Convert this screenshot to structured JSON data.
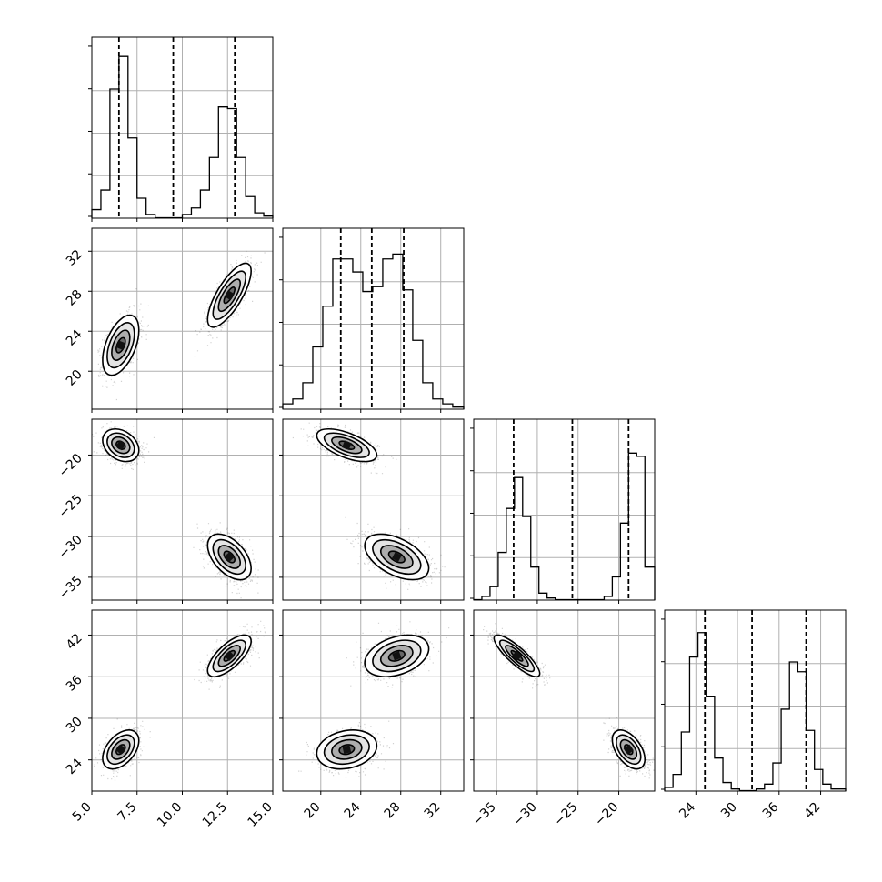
{
  "chart_data": {
    "type": "corner",
    "params": [
      {
        "ticks": [
          5.0,
          7.5,
          10.0,
          12.5,
          15.0
        ],
        "labels": [
          "5.0",
          "7.5",
          "10.0",
          "12.5",
          "15.0"
        ],
        "range": [
          5.0,
          15.0
        ],
        "quantiles": [
          6.5,
          9.5,
          12.9
        ]
      },
      {
        "ticks": [
          20,
          24,
          28,
          32
        ],
        "labels": [
          "20",
          "24",
          "28",
          "32"
        ],
        "range": [
          16.2,
          34.3
        ],
        "quantiles": [
          22.0,
          25.1,
          28.3
        ]
      },
      {
        "ticks": [
          -35,
          -30,
          -25,
          -20
        ],
        "labels": [
          "−35",
          "−30",
          "−25",
          "−20"
        ],
        "range": [
          -37.8,
          -15.6
        ],
        "quantiles": [
          -32.9,
          -25.7,
          -18.8
        ]
      },
      {
        "ticks": [
          24,
          30,
          36,
          42
        ],
        "labels": [
          "24",
          "30",
          "36",
          "42"
        ],
        "range": [
          19.5,
          45.6
        ],
        "quantiles": [
          25.3,
          32.1,
          39.9
        ]
      }
    ],
    "histograms": [
      {
        "bins": [
          5.0,
          5.5,
          6.0,
          6.5,
          7.0,
          7.5,
          8.0,
          8.5,
          9.0,
          9.5,
          10.0,
          10.5,
          11.0,
          11.5,
          12.0,
          12.5,
          13.0,
          13.5,
          14.0,
          14.5,
          15.0
        ],
        "counts": [
          0.05,
          0.17,
          0.79,
          0.99,
          0.49,
          0.12,
          0.02,
          0,
          0,
          0,
          0.02,
          0.06,
          0.17,
          0.37,
          0.68,
          0.67,
          0.37,
          0.13,
          0.03,
          0.01
        ]
      },
      {
        "bins": [
          16.2,
          17.2,
          18.2,
          19.2,
          20.2,
          21.2,
          22.2,
          23.2,
          24.2,
          25.2,
          26.2,
          27.2,
          28.2,
          29.2,
          30.2,
          31.2,
          32.2,
          33.2,
          34.3
        ],
        "counts": [
          0.03,
          0.06,
          0.16,
          0.38,
          0.63,
          0.92,
          0.92,
          0.84,
          0.72,
          0.75,
          0.92,
          0.95,
          0.73,
          0.42,
          0.16,
          0.06,
          0.03,
          0.01
        ]
      },
      {
        "bins": [
          -37.8,
          -36.8,
          -35.8,
          -34.8,
          -33.8,
          -32.8,
          -31.8,
          -30.8,
          -29.8,
          -28.8,
          -27.8,
          -26.8,
          -25.8,
          -24.8,
          -23.8,
          -22.8,
          -21.8,
          -20.8,
          -19.8,
          -18.8,
          -17.8,
          -16.8,
          -15.6
        ],
        "counts": [
          0,
          0.02,
          0.08,
          0.29,
          0.56,
          0.75,
          0.51,
          0.2,
          0.04,
          0.01,
          0,
          0,
          0,
          0,
          0,
          0,
          0.02,
          0.14,
          0.47,
          0.9,
          0.88,
          0.2
        ]
      },
      {
        "bins": [
          19.5,
          20.7,
          21.9,
          23.1,
          24.3,
          25.5,
          26.7,
          27.9,
          29.1,
          30.3,
          31.5,
          32.7,
          33.9,
          35.1,
          36.3,
          37.5,
          38.7,
          39.9,
          41.1,
          42.3,
          43.5,
          44.7,
          45.6
        ],
        "counts": [
          0.02,
          0.1,
          0.36,
          0.82,
          0.97,
          0.58,
          0.2,
          0.05,
          0.01,
          0,
          0,
          0.01,
          0.04,
          0.17,
          0.5,
          0.79,
          0.73,
          0.37,
          0.13,
          0.04,
          0.01,
          0.01
        ]
      }
    ],
    "clusters": [
      {
        "mean": [
          6.6,
          22.6,
          -18.8,
          25.5
        ],
        "sd": [
          0.5,
          1.5,
          1.0,
          1.4
        ]
      },
      {
        "mean": [
          12.6,
          27.6,
          -32.5,
          39.0
        ],
        "sd": [
          0.6,
          1.6,
          1.4,
          1.5
        ]
      }
    ],
    "correlations": {
      "1-0": [
        0.5,
        0.75
      ],
      "2-0": [
        -0.3,
        -0.5
      ],
      "2-1": [
        -0.6,
        -0.5
      ],
      "3-0": [
        0.45,
        0.7
      ],
      "3-1": [
        0.2,
        0.35
      ],
      "3-2": [
        -0.5,
        -0.85
      ]
    },
    "grid": true
  }
}
